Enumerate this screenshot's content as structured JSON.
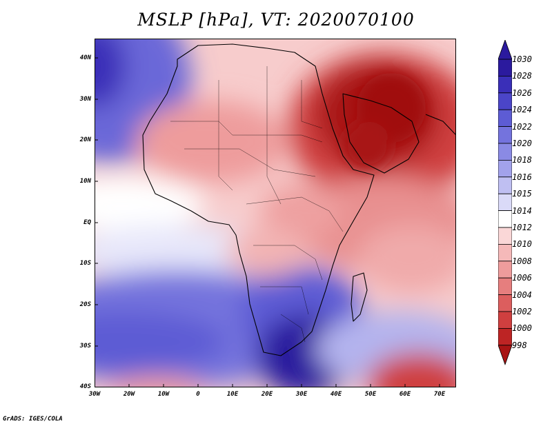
{
  "title": "MSLP [hPa], VT: 2020070100",
  "credit": "GrADS: IGES/COLA",
  "axes": {
    "lat_labels": [
      "40N",
      "30N",
      "20N",
      "10N",
      "EQ",
      "10S",
      "20S",
      "30S",
      "40S"
    ],
    "lon_labels": [
      "30W",
      "20W",
      "10W",
      "0",
      "10E",
      "20E",
      "30E",
      "40E",
      "50E",
      "60E",
      "70E"
    ],
    "lon_range": [
      -30,
      75
    ],
    "lat_range": [
      -40,
      45
    ]
  },
  "colorbar": {
    "labels": [
      "1030",
      "1028",
      "1026",
      "1024",
      "1022",
      "1020",
      "1018",
      "1016",
      "1015",
      "1014",
      "1012",
      "1010",
      "1008",
      "1006",
      "1004",
      "1002",
      "1000",
      "998"
    ],
    "colors": [
      "#2b1a9e",
      "#3a2fb8",
      "#4b45c8",
      "#5d5cd4",
      "#7473dd",
      "#8a8ae4",
      "#a2a2eb",
      "#bfbff2",
      "#dadaf8",
      "#ffffff",
      "#fad7d7",
      "#f5b9b9",
      "#ee9c9c",
      "#e67e7e",
      "#dc5e5e",
      "#cf3f3f",
      "#bd2424",
      "#a81414"
    ]
  },
  "colors": {
    "high_deep": "#2b1a9e",
    "low_deep": "#a81414",
    "neutral": "#ffffff"
  }
}
